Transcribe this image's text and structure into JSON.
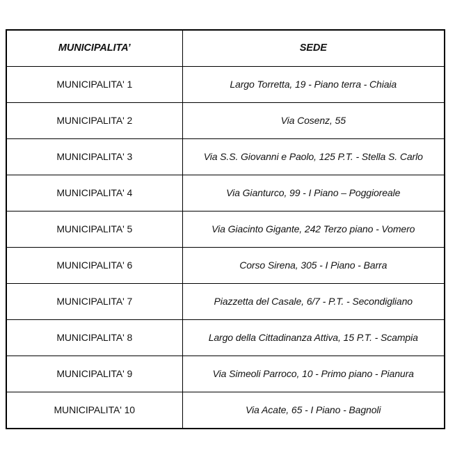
{
  "table": {
    "headers": {
      "municipality": "MUNICIPALITA’",
      "sede": "SEDE"
    },
    "rows": [
      {
        "municipality": "MUNICIPALITA' 1",
        "sede": "Largo Torretta, 19 - Piano terra - Chiaia"
      },
      {
        "municipality": "MUNICIPALITA' 2",
        "sede": "Via Cosenz, 55"
      },
      {
        "municipality": "MUNICIPALITA' 3",
        "sede": "Via S.S. Giovanni e Paolo, 125 P.T. - Stella S. Carlo"
      },
      {
        "municipality": "MUNICIPALITA' 4",
        "sede": "Via Gianturco, 99 - I Piano – Poggioreale"
      },
      {
        "municipality": "MUNICIPALITA' 5",
        "sede": "Via Giacinto Gigante, 242 Terzo piano - Vomero"
      },
      {
        "municipality": "MUNICIPALITA' 6",
        "sede": "Corso Sirena, 305 - I Piano - Barra"
      },
      {
        "municipality": "MUNICIPALITA' 7",
        "sede": "Piazzetta del Casale, 6/7 - P.T. - Secondigliano"
      },
      {
        "municipality": "MUNICIPALITA' 8",
        "sede": "Largo della Cittadinanza Attiva, 15 P.T. - Scampia"
      },
      {
        "municipality": "MUNICIPALITA' 9",
        "sede": "Via Simeoli Parroco, 10 - Primo piano - Pianura"
      },
      {
        "municipality": "MUNICIPALITA' 10",
        "sede": "Via Acate, 65 - I Piano - Bagnoli"
      }
    ],
    "colors": {
      "border": "#000000",
      "text": "#121212",
      "background": "#ffffff"
    }
  }
}
